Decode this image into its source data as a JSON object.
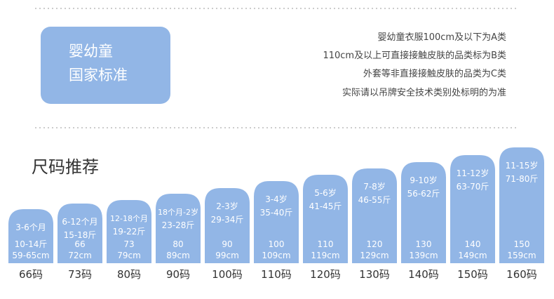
{
  "header": {
    "badge": [
      "婴幼童",
      "国家标准"
    ],
    "notes": [
      "婴幼童衣服100cm及以下为A类",
      "110cm及以上可直接接触皮肤的品类标为B类",
      "外套等非直接接触皮肤的品类为C类",
      "实际请以吊牌安全技术类别处标明的为准"
    ]
  },
  "section_title": "尺码推荐",
  "columns": [
    {
      "top": [
        "3-6个月"
      ],
      "bottom": [
        "10-14斤",
        "59-65cm"
      ],
      "label": "66码"
    },
    {
      "top": [
        "6-12个月",
        "15-18斤"
      ],
      "bottom": [
        "66",
        "72cm"
      ],
      "label": "73码"
    },
    {
      "top": [
        "12-18个月",
        "19-22斤"
      ],
      "bottom": [
        "73",
        "79cm"
      ],
      "label": "80码"
    },
    {
      "top": [
        "18个月-2岁",
        "23-28斤"
      ],
      "bottom": [
        "80",
        "89cm"
      ],
      "label": "90码"
    },
    {
      "top": [
        "2-3岁",
        "29-34斤"
      ],
      "bottom": [
        "90",
        "99cm"
      ],
      "label": "100码"
    },
    {
      "top": [
        "3-4岁",
        "35-40斤"
      ],
      "bottom": [
        "100",
        "109cm"
      ],
      "label": "110码"
    },
    {
      "top": [
        "5-6岁",
        "41-45斤"
      ],
      "bottom": [
        "110",
        "119cm"
      ],
      "label": "120码"
    },
    {
      "top": [
        "7-8岁",
        "46-55斤"
      ],
      "bottom": [
        "120",
        "129cm"
      ],
      "label": "130码"
    },
    {
      "top": [
        "9-10岁",
        "56-62斤"
      ],
      "bottom": [
        "130",
        "139cm"
      ],
      "label": "140码"
    },
    {
      "top": [
        "11-12岁",
        "63-70斤"
      ],
      "bottom": [
        "140",
        "149cm"
      ],
      "label": "150码"
    },
    {
      "top": [
        "11-15岁",
        "71-80斤"
      ],
      "bottom": [
        "150",
        "159cm"
      ],
      "label": "160码"
    }
  ]
}
